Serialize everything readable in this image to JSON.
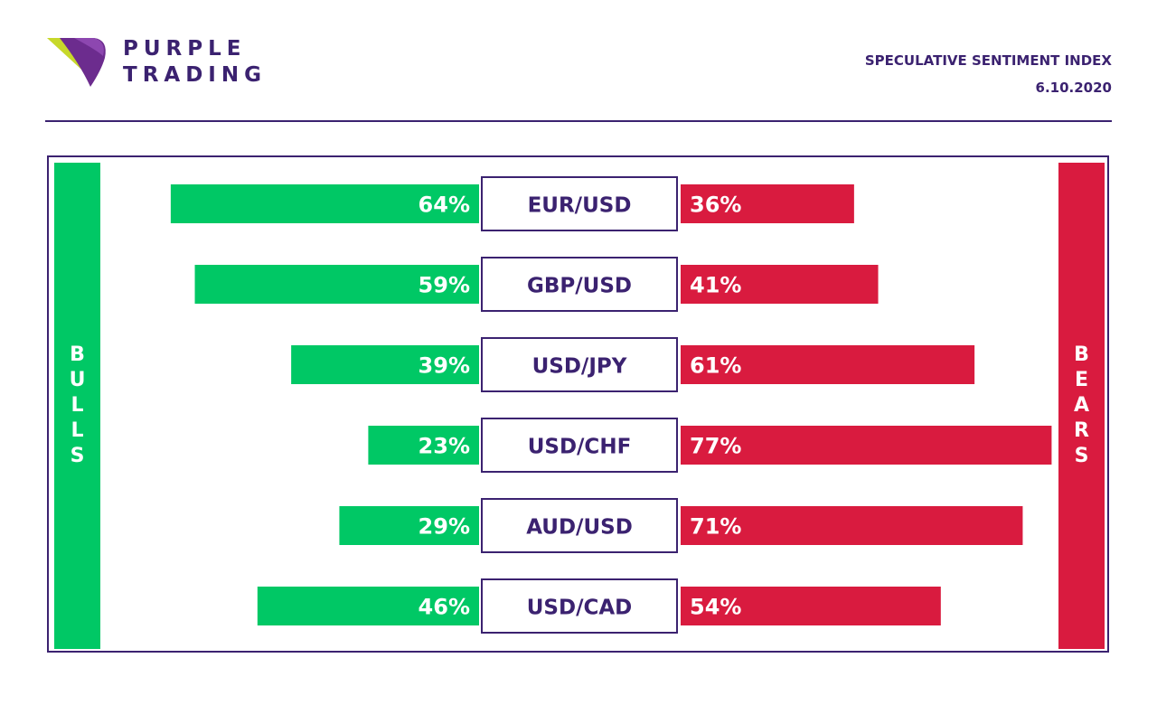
{
  "brand": {
    "line1": "PURPLE",
    "line2": "TRADING"
  },
  "header": {
    "title": "SPECULATIVE SENTIMENT INDEX",
    "date": "6.10.2020"
  },
  "sides": {
    "left": "BULLS",
    "right": "BEARS"
  },
  "colors": {
    "bulls": "#00c865",
    "bears": "#d91b3f",
    "brand": "#3b2270"
  },
  "chart_data": {
    "type": "bar",
    "categories": [
      "EUR/USD",
      "GBP/USD",
      "USD/JPY",
      "USD/CHF",
      "AUD/USD",
      "USD/CAD"
    ],
    "series": [
      {
        "name": "BULLS",
        "values": [
          64,
          59,
          39,
          23,
          29,
          46
        ],
        "labels": [
          "64%",
          "59%",
          "39%",
          "23%",
          "29%",
          "46%"
        ]
      },
      {
        "name": "BEARS",
        "values": [
          36,
          41,
          61,
          77,
          71,
          54
        ],
        "labels": [
          "36%",
          "41%",
          "61%",
          "77%",
          "71%",
          "54%"
        ]
      }
    ],
    "title": "SPECULATIVE SENTIMENT INDEX",
    "xlabel": "",
    "ylabel": "",
    "grid": false
  }
}
